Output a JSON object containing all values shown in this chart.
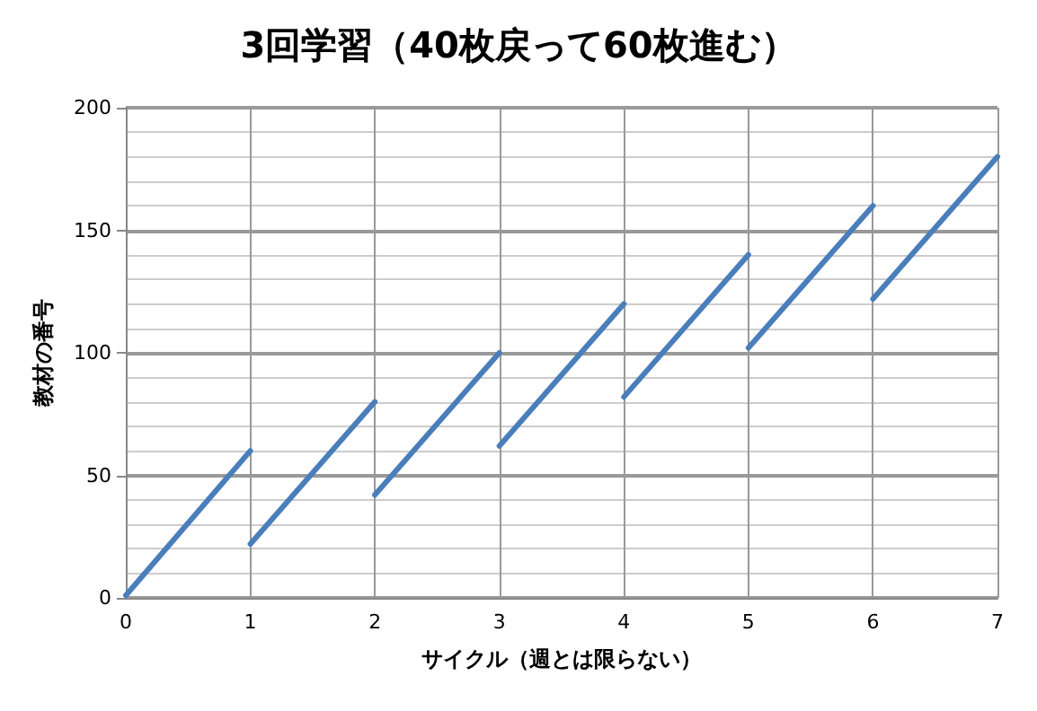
{
  "chart_data": {
    "type": "line",
    "title": "3回学習（40枚戻って60枚進む）",
    "xlabel": "サイクル（週とは限らない）",
    "ylabel": "教材の番号",
    "series": [
      {
        "color": "#4a7ebb",
        "x": [
          0,
          1
        ],
        "values": [
          1,
          60
        ]
      },
      {
        "color": "#4a7ebb",
        "x": [
          1,
          2
        ],
        "values": [
          22,
          80
        ]
      },
      {
        "color": "#4a7ebb",
        "x": [
          2,
          3
        ],
        "values": [
          42,
          100
        ]
      },
      {
        "color": "#4a7ebb",
        "x": [
          3,
          4
        ],
        "values": [
          62,
          120
        ]
      },
      {
        "color": "#4a7ebb",
        "x": [
          4,
          5
        ],
        "values": [
          82,
          140
        ]
      },
      {
        "color": "#4a7ebb",
        "x": [
          5,
          6
        ],
        "values": [
          102,
          160
        ]
      },
      {
        "color": "#4a7ebb",
        "x": [
          6,
          7
        ],
        "values": [
          122,
          180
        ]
      }
    ],
    "xlim": [
      0,
      7
    ],
    "xticks": [
      0,
      1,
      2,
      3,
      4,
      5,
      6,
      7
    ],
    "ylim": [
      0,
      200
    ],
    "yticks": [
      0,
      50,
      100,
      150,
      200
    ],
    "grid": true,
    "marker": "none",
    "line_style": "solid"
  }
}
